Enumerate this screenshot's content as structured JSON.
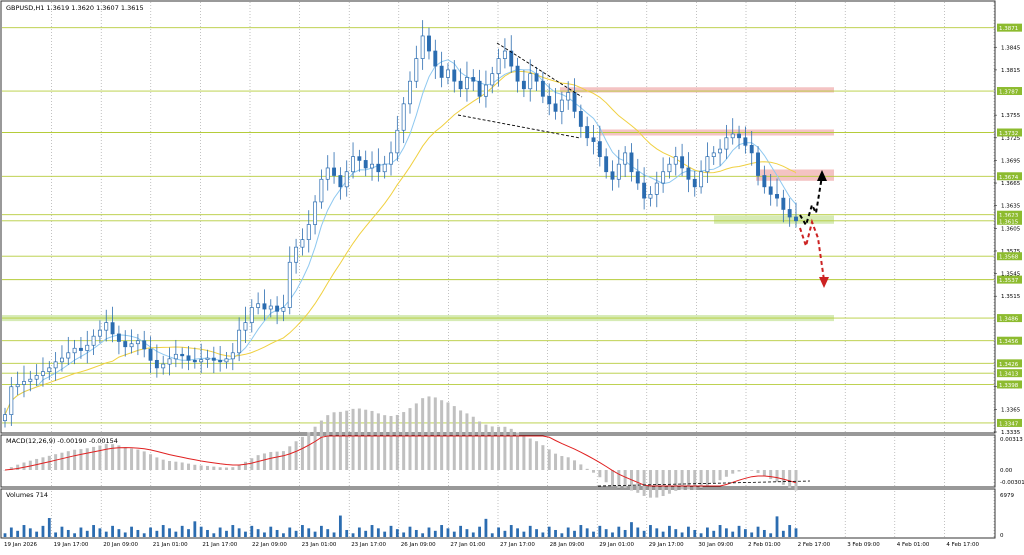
{
  "header": {
    "symbol_info": "GBPUSD,H1  1.3619  1.3620  1.3607  1.3615"
  },
  "colors": {
    "candle": "#2b6cb0",
    "level_line": "#b5cc3a",
    "ma_fast": "#8ec8f0",
    "ma_slow": "#f0d040",
    "resistance_zone": "#f2b8b8",
    "support_zone": "#cfe8a8",
    "price_badge": "#8dbb2f",
    "macd_hist": "#c0c0c0",
    "macd_signal": "#e02020",
    "volume_bar": "#2b6cb0",
    "arrow_up": "#000000",
    "arrow_down": "#cc2222"
  },
  "chart_data": [
    {
      "type": "candlestick",
      "title": "GBPUSD,H1",
      "ohlc_last": {
        "open": 1.3619,
        "high": 1.362,
        "low": 1.3607,
        "close": 1.3615
      },
      "ylim": [
        1.3335,
        1.3905
      ],
      "y_ticks": [
        "1.3845",
        "1.3815",
        "1.3755",
        "1.3725",
        "1.3695",
        "1.3665",
        "1.3635",
        "1.3605",
        "1.3575",
        "1.3545",
        "1.3515",
        "1.3395",
        "1.3365",
        "1.3335"
      ],
      "x_labels": [
        "19 Jan 2026",
        "19 Jan 17:00",
        "20 Jan 09:00",
        "21 Jan 01:00",
        "21 Jan 17:00",
        "22 Jan 09:00",
        "23 Jan 01:00",
        "23 Jan 17:00",
        "26 Jan 09:00",
        "27 Jan 01:00",
        "27 Jan 17:00",
        "28 Jan 09:00",
        "29 Jan 01:00",
        "29 Jan 17:00",
        "30 Jan 09:00",
        "2 Feb 01:00",
        "2 Feb 17:00",
        "3 Feb 09:00",
        "4 Feb 01:00",
        "4 Feb 17:00"
      ],
      "price_levels": [
        "1.3871",
        "1.3787",
        "1.3732",
        "1.3674",
        "1.3623",
        "1.3615",
        "1.3568",
        "1.3537",
        "1.3486",
        "1.3456",
        "1.3426",
        "1.3413",
        "1.3398",
        "1.3347"
      ],
      "current_price": "1.3615",
      "zones": [
        {
          "kind": "resistance",
          "from": 1.3785,
          "to": 1.3792
        },
        {
          "kind": "resistance",
          "from": 1.3728,
          "to": 1.3736
        },
        {
          "kind": "resistance",
          "from": 1.3668,
          "to": 1.3683
        },
        {
          "kind": "support",
          "from": 1.3611,
          "to": 1.3622
        },
        {
          "kind": "support",
          "from": 1.3482,
          "to": 1.349
        }
      ],
      "close_series": [
        1.3358,
        1.3395,
        1.3398,
        1.3402,
        1.3405,
        1.341,
        1.3415,
        1.342,
        1.3428,
        1.3433,
        1.344,
        1.3446,
        1.3443,
        1.345,
        1.3462,
        1.347,
        1.348,
        1.3465,
        1.3455,
        1.3448,
        1.3452,
        1.3456,
        1.3445,
        1.343,
        1.342,
        1.3425,
        1.3432,
        1.3438,
        1.3436,
        1.343,
        1.3428,
        1.3431,
        1.3433,
        1.343,
        1.3428,
        1.3432,
        1.344,
        1.347,
        1.348,
        1.35,
        1.3505,
        1.3498,
        1.3502,
        1.3495,
        1.35,
        1.356,
        1.358,
        1.359,
        1.361,
        1.364,
        1.367,
        1.3685,
        1.3675,
        1.366,
        1.368,
        1.37,
        1.3695,
        1.3685,
        1.369,
        1.368,
        1.369,
        1.3705,
        1.3735,
        1.377,
        1.38,
        1.383,
        1.386,
        1.384,
        1.382,
        1.3805,
        1.3815,
        1.38,
        1.379,
        1.3805,
        1.38,
        1.378,
        1.3795,
        1.381,
        1.383,
        1.384,
        1.382,
        1.38,
        1.379,
        1.381,
        1.38,
        1.378,
        1.377,
        1.376,
        1.3775,
        1.3785,
        1.376,
        1.374,
        1.3725,
        1.372,
        1.37,
        1.368,
        1.367,
        1.369,
        1.3705,
        1.368,
        1.3665,
        1.3645,
        1.365,
        1.3665,
        1.368,
        1.369,
        1.37,
        1.3685,
        1.367,
        1.366,
        1.368,
        1.37,
        1.3705,
        1.371,
        1.3725,
        1.373,
        1.3725,
        1.3715,
        1.3705,
        1.3675,
        1.366,
        1.365,
        1.3645,
        1.363,
        1.362,
        1.3615
      ]
    },
    {
      "type": "macd",
      "title": "MACD(12,26,9) -0.00190 -0.00154",
      "y_ticks": [
        "0.00313",
        "0.00",
        "-0.00301"
      ]
    },
    {
      "type": "volume",
      "title": "Volumes 714",
      "y_ticks": [
        "6979",
        "0"
      ]
    }
  ]
}
